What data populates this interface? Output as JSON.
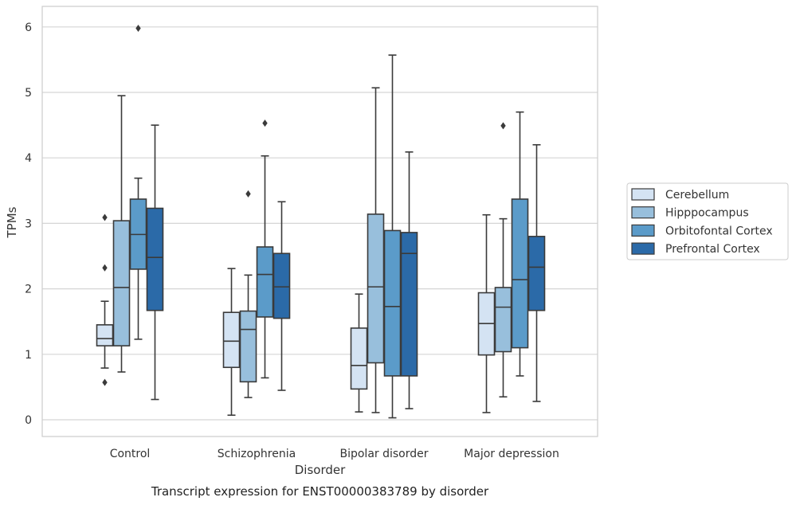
{
  "chart_data": {
    "type": "box",
    "caption": "Transcript expression for ENST00000383789 by disorder",
    "xlabel": "Disorder",
    "ylabel": "TPMs",
    "ylim": [
      -0.25,
      6.25
    ],
    "yticks": [
      0,
      1,
      2,
      3,
      4,
      5,
      6
    ],
    "grid": "horizontal",
    "legend_position": "right",
    "categories": [
      "Control",
      "Schizophrenia",
      "Bipolar disorder",
      "Major depression"
    ],
    "series": [
      {
        "name": "Cerebellum",
        "color": "#d4e3f3",
        "boxes": [
          {
            "whislo": 0.79,
            "q1": 1.13,
            "med": 1.24,
            "q3": 1.45,
            "whishi": 1.81,
            "fliers": [
              3.09,
              2.32,
              0.57
            ]
          },
          {
            "whislo": 0.07,
            "q1": 0.8,
            "med": 1.2,
            "q3": 1.64,
            "whishi": 2.31,
            "fliers": []
          },
          {
            "whislo": 0.12,
            "q1": 0.47,
            "med": 0.83,
            "q3": 1.4,
            "whishi": 1.92,
            "fliers": []
          },
          {
            "whislo": 0.11,
            "q1": 0.99,
            "med": 1.47,
            "q3": 1.94,
            "whishi": 3.13,
            "fliers": []
          }
        ]
      },
      {
        "name": "Hipppocampus",
        "color": "#98bfdc",
        "boxes": [
          {
            "whislo": 0.73,
            "q1": 1.13,
            "med": 2.02,
            "q3": 3.04,
            "whishi": 4.95,
            "fliers": []
          },
          {
            "whislo": 0.34,
            "q1": 0.58,
            "med": 1.38,
            "q3": 1.66,
            "whishi": 2.21,
            "fliers": [
              3.45
            ]
          },
          {
            "whislo": 0.11,
            "q1": 0.87,
            "med": 2.03,
            "q3": 3.14,
            "whishi": 5.07,
            "fliers": []
          },
          {
            "whislo": 0.35,
            "q1": 1.04,
            "med": 1.72,
            "q3": 2.02,
            "whishi": 3.07,
            "fliers": [
              4.49
            ]
          }
        ]
      },
      {
        "name": "Orbitofontal Cortex",
        "color": "#5b9bc9",
        "boxes": [
          {
            "whislo": 1.23,
            "q1": 2.3,
            "med": 2.83,
            "q3": 3.37,
            "whishi": 3.69,
            "fliers": [
              5.98
            ]
          },
          {
            "whislo": 0.64,
            "q1": 1.57,
            "med": 2.22,
            "q3": 2.64,
            "whishi": 4.03,
            "fliers": [
              4.53
            ]
          },
          {
            "whislo": 0.03,
            "q1": 0.67,
            "med": 1.73,
            "q3": 2.89,
            "whishi": 5.57,
            "fliers": []
          },
          {
            "whislo": 0.67,
            "q1": 1.1,
            "med": 2.14,
            "q3": 3.37,
            "whishi": 4.7,
            "fliers": []
          }
        ]
      },
      {
        "name": "Prefrontal Cortex",
        "color": "#2b6aa8",
        "boxes": [
          {
            "whislo": 0.31,
            "q1": 1.67,
            "med": 2.48,
            "q3": 3.23,
            "whishi": 4.5,
            "fliers": []
          },
          {
            "whislo": 0.45,
            "q1": 1.55,
            "med": 2.03,
            "q3": 2.54,
            "whishi": 3.33,
            "fliers": []
          },
          {
            "whislo": 0.17,
            "q1": 0.67,
            "med": 2.54,
            "q3": 2.86,
            "whishi": 4.09,
            "fliers": []
          },
          {
            "whislo": 0.28,
            "q1": 1.67,
            "med": 2.33,
            "q3": 2.8,
            "whishi": 4.2,
            "fliers": []
          }
        ]
      }
    ]
  }
}
